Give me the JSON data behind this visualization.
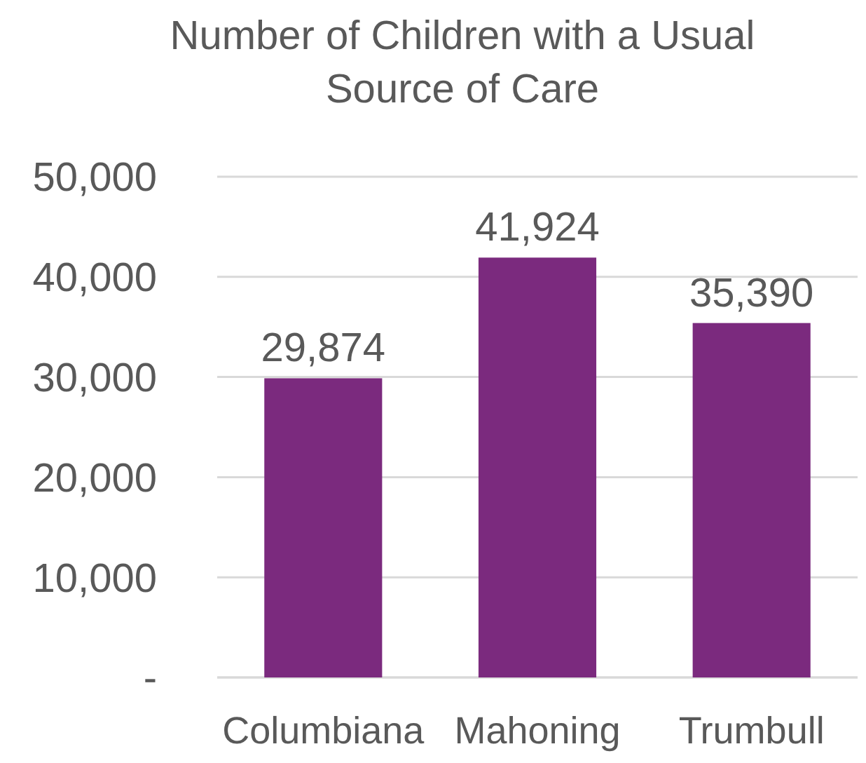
{
  "chart_data": {
    "type": "bar",
    "title": "Number of Children with a Usual Source of Care",
    "categories": [
      "Columbiana",
      "Mahoning",
      "Trumbull"
    ],
    "values": [
      29874,
      41924,
      35390
    ],
    "value_labels": [
      "29,874",
      "41,924",
      "35,390"
    ],
    "color": "#7b2a7e",
    "ylim": [
      0,
      50000
    ],
    "yticks": [
      {
        "value": 0,
        "label": "-"
      },
      {
        "value": 10000,
        "label": "10,000"
      },
      {
        "value": 20000,
        "label": "20,000"
      },
      {
        "value": 30000,
        "label": "30,000"
      },
      {
        "value": 40000,
        "label": "40,000"
      },
      {
        "value": 50000,
        "label": "50,000"
      }
    ],
    "grid": "y"
  }
}
